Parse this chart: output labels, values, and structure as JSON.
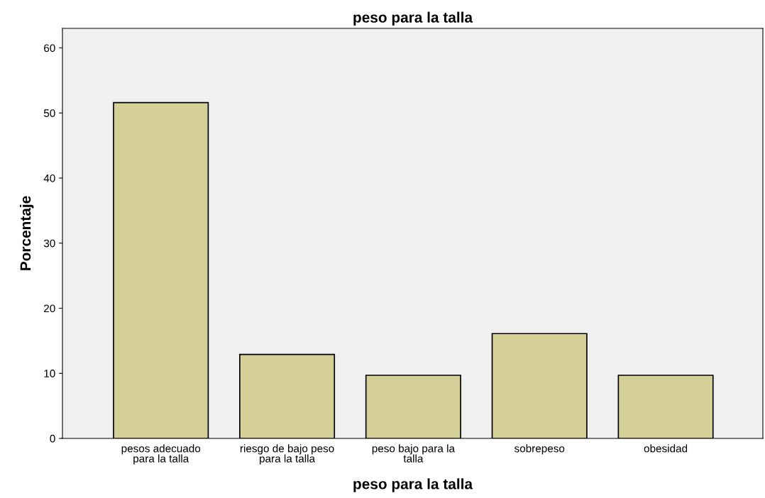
{
  "chart_data": {
    "type": "bar",
    "title": "peso para la talla",
    "xlabel": "peso para la talla",
    "ylabel": "Porcentaje",
    "categories": [
      "pesos adecuado\npara la talla",
      "riesgo de bajo peso\npara la talla",
      "peso bajo para la\ntalla",
      "sobrepeso",
      "obesidad"
    ],
    "values": [
      51.6,
      12.9,
      9.7,
      16.1,
      9.7
    ],
    "color": "#d5cf98",
    "ylim": [
      0,
      63
    ],
    "yticks": [
      0,
      10,
      20,
      30,
      40,
      50,
      60
    ],
    "grid": false,
    "legend": false
  }
}
